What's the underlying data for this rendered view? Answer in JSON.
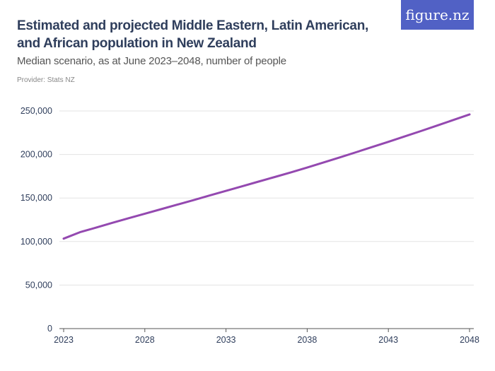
{
  "header": {
    "title": "Estimated and projected Middle Eastern, Latin American, and African population in New Zealand",
    "subtitle": "Median scenario, as at June 2023–2048, number of people",
    "provider": "Provider: Stats NZ",
    "logo": "figure.nz"
  },
  "chart_data": {
    "type": "line",
    "title": "Estimated and projected Middle Eastern, Latin American, and African population in New Zealand",
    "xlabel": "",
    "ylabel": "",
    "x": [
      2023,
      2024,
      2025,
      2026,
      2027,
      2028,
      2029,
      2030,
      2031,
      2032,
      2033,
      2034,
      2035,
      2036,
      2037,
      2038,
      2039,
      2040,
      2041,
      2042,
      2043,
      2044,
      2045,
      2046,
      2047,
      2048
    ],
    "series": [
      {
        "values": [
          103300,
          110700,
          116000,
          121500,
          126800,
          132000,
          137200,
          142400,
          147600,
          152900,
          158200,
          163500,
          168800,
          174100,
          179500,
          185000,
          190800,
          196600,
          202500,
          208500,
          214500,
          220700,
          226900,
          233200,
          239600,
          246000
        ],
        "color": "#9449b0"
      }
    ],
    "xlim": [
      2023,
      2048
    ],
    "ylim": [
      0,
      250000
    ],
    "x_ticks": [
      "2023",
      "2028",
      "2033",
      "2038",
      "2043",
      "2048"
    ],
    "y_ticks": [
      "0",
      "50,000",
      "100,000",
      "150,000",
      "200,000",
      "250,000"
    ],
    "grid": true
  }
}
